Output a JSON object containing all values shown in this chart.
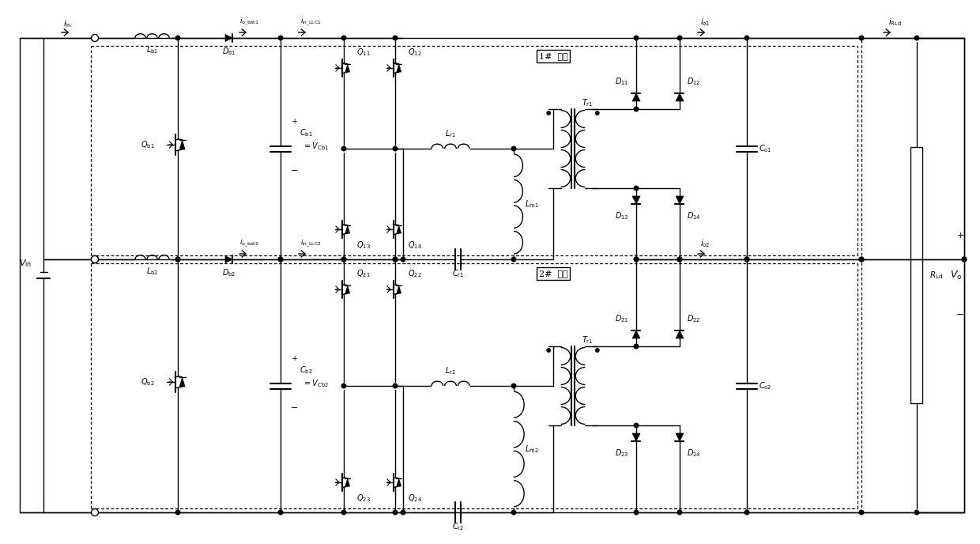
{
  "fig_width": 12.4,
  "fig_height": 6.88,
  "bg_color": "#ffffff",
  "line_color": "#000000"
}
